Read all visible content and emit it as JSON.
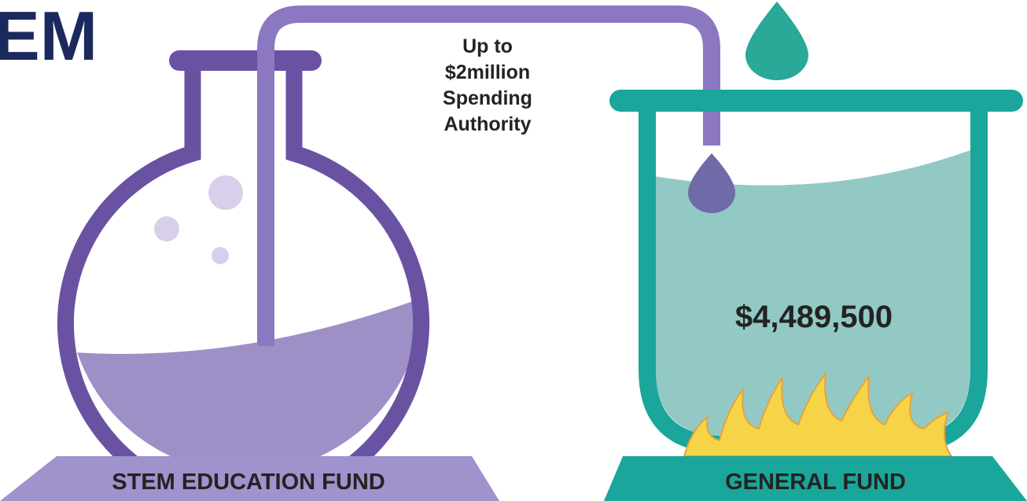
{
  "header": {
    "title": "EM"
  },
  "transfer": {
    "lines": [
      "Up to",
      "$2million",
      "Spending",
      "Authority"
    ]
  },
  "funds": [
    {
      "label": "STEM EDUCATION FUND"
    },
    {
      "label": "GENERAL FUND",
      "amount": "$4,489,500"
    }
  ]
}
